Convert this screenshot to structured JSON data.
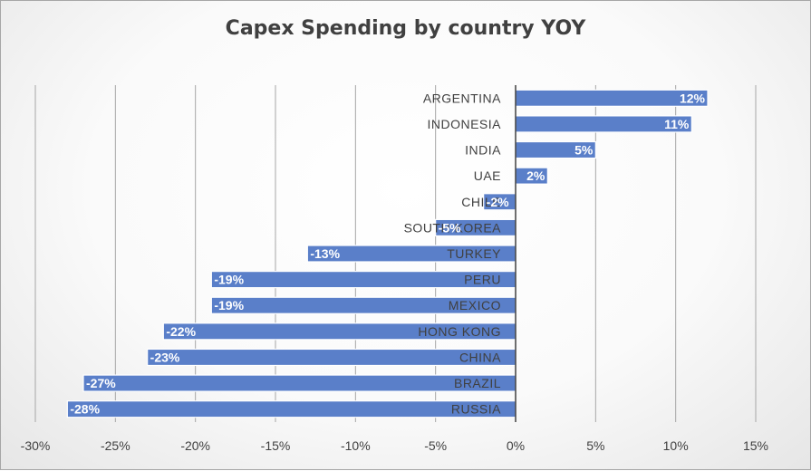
{
  "chart_data": {
    "type": "bar",
    "orientation": "horizontal",
    "title": "Capex Spending by country YOY",
    "categories": [
      "ARGENTINA",
      "INDONESIA",
      "INDIA",
      "UAE",
      "CHILE",
      "SOUTH KOREA",
      "TURKEY",
      "PERU",
      "MEXICO",
      "HONG KONG",
      "CHINA",
      "BRAZIL",
      "RUSSIA"
    ],
    "values": [
      12,
      11,
      5,
      2,
      -2,
      -5,
      -13,
      -19,
      -19,
      -22,
      -23,
      -27,
      -28
    ],
    "data_labels": [
      "12%",
      "11%",
      "5%",
      "2%",
      "-2%",
      "-5%",
      "-13%",
      "-19%",
      "-19%",
      "-22%",
      "-23%",
      "-27%",
      "-28%"
    ],
    "xlim": [
      -30,
      15
    ],
    "x_ticks": [
      "-30%",
      "-25%",
      "-20%",
      "-15%",
      "-10%",
      "-5%",
      "0%",
      "5%",
      "10%",
      "15%"
    ],
    "grid": "vertical",
    "legend": "none",
    "colors": {
      "bar": "#5a7fc9",
      "bar_edge": "#ffffff",
      "grid": "#a6a6a6",
      "axis": "#404040"
    }
  }
}
